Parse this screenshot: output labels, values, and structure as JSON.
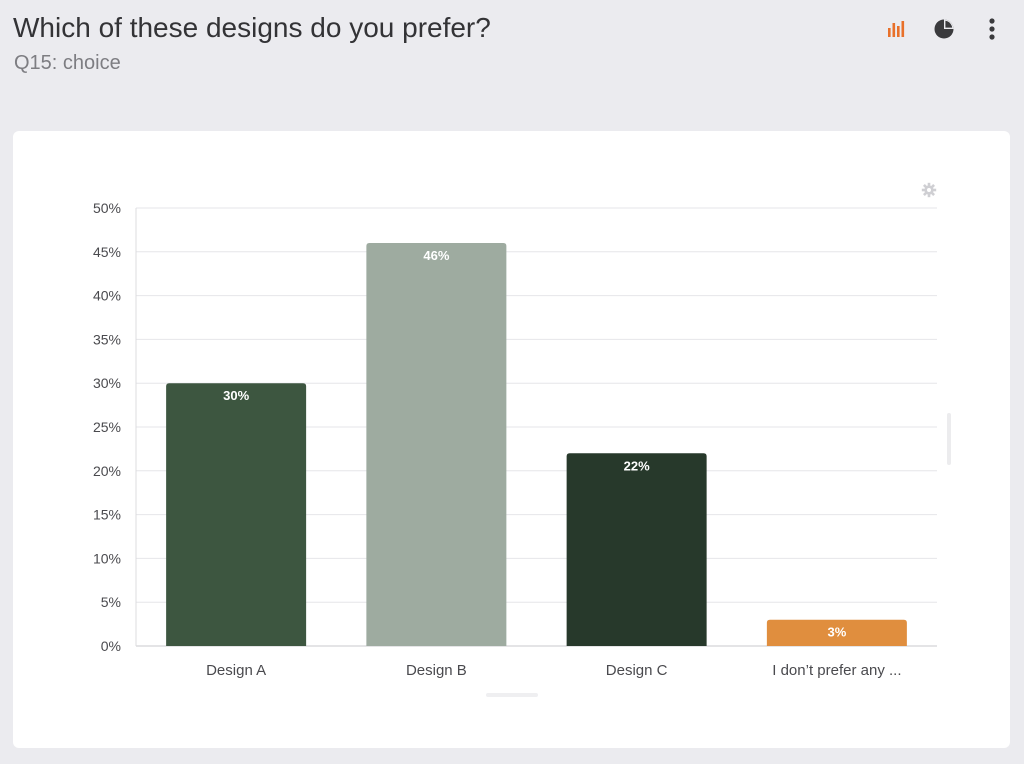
{
  "header": {
    "title": "Which of these designs do you prefer?",
    "subtitle": "Q15: choice"
  },
  "toolbar": {
    "icons": [
      "bar-chart-icon",
      "pie-chart-icon",
      "more-vertical-icon"
    ],
    "active_color": "#e8702a",
    "inactive_color": "#3a3a3d"
  },
  "chart_data": {
    "type": "bar",
    "categories": [
      "Design A",
      "Design B",
      "Design C",
      "I don’t prefer any ..."
    ],
    "values": [
      30,
      46,
      22,
      3
    ],
    "value_labels": [
      "30%",
      "46%",
      "22%",
      "3%"
    ],
    "bar_colors": [
      "#3d5640",
      "#9eaba0",
      "#27392b",
      "#e08e3e"
    ],
    "yticks": [
      "0%",
      "5%",
      "10%",
      "15%",
      "20%",
      "25%",
      "30%",
      "35%",
      "40%",
      "45%",
      "50%"
    ],
    "ylim": [
      0,
      50
    ],
    "grid": true,
    "title": "",
    "xlabel": "",
    "ylabel": ""
  }
}
